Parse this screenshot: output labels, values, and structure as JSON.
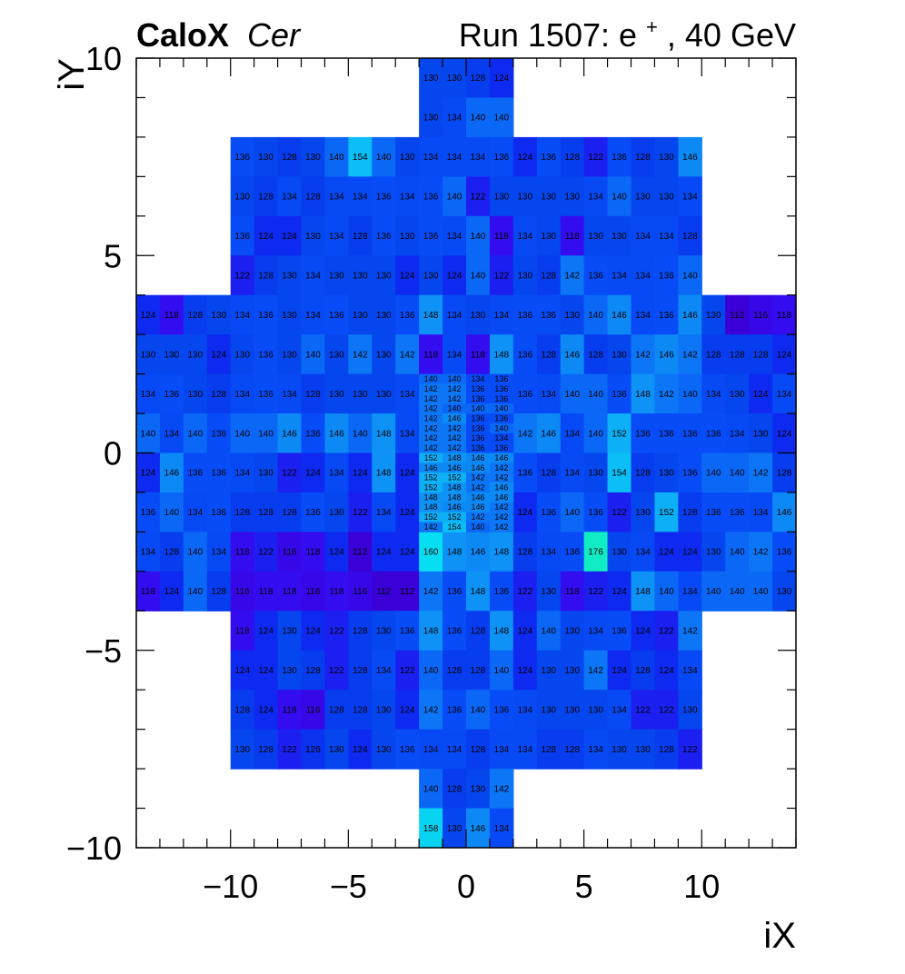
{
  "header": {
    "brand": "CaloX",
    "subtitle": "Cer",
    "run_prefix": "Run 1507: e",
    "run_superscript": "+",
    "run_suffix": ", 40 GeV"
  },
  "chart_data": {
    "type": "heatmap",
    "xlabel": "iX",
    "ylabel": "iY",
    "xlim": [
      -14,
      14
    ],
    "ylim": [
      -10,
      10
    ],
    "x_ticks": [
      -10,
      -5,
      0,
      5,
      10
    ],
    "y_ticks": [
      -10,
      -5,
      0,
      5,
      10
    ],
    "x_tick_labels": [
      "−10",
      "−5",
      "0",
      "5",
      "10"
    ],
    "y_tick_labels": [
      "−10",
      "−5",
      "0",
      "5",
      "10"
    ],
    "color_range": [
      112,
      176
    ],
    "grid": false,
    "legend": "none",
    "coarse_cells": {
      "columns": [
        {
          "x0": -14,
          "x1": -13
        },
        {
          "x0": -13,
          "x1": -12
        },
        {
          "x0": -12,
          "x1": -11
        },
        {
          "x0": -11,
          "x1": -10
        },
        {
          "x0": -10,
          "x1": -9
        },
        {
          "x0": -9,
          "x1": -8
        },
        {
          "x0": -8,
          "x1": -7
        },
        {
          "x0": -7,
          "x1": -6
        },
        {
          "x0": -6,
          "x1": -5
        },
        {
          "x0": -5,
          "x1": -4
        },
        {
          "x0": -4,
          "x1": -3
        },
        {
          "x0": -3,
          "x1": -2
        },
        {
          "x0": -2,
          "x1": -1
        },
        {
          "x0": -1,
          "x1": 0
        },
        {
          "x0": 0,
          "x1": 1
        },
        {
          "x0": 1,
          "x1": 2
        },
        {
          "x0": 2,
          "x1": 3
        },
        {
          "x0": 3,
          "x1": 4
        },
        {
          "x0": 4,
          "x1": 5
        },
        {
          "x0": 5,
          "x1": 6
        },
        {
          "x0": 6,
          "x1": 7
        },
        {
          "x0": 7,
          "x1": 8
        },
        {
          "x0": 8,
          "x1": 9
        },
        {
          "x0": 9,
          "x1": 10
        },
        {
          "x0": 10,
          "x1": 11
        },
        {
          "x0": 11,
          "x1": 12
        },
        {
          "x0": 12,
          "x1": 13
        },
        {
          "x0": 13,
          "x1": 14
        }
      ],
      "rows": [
        {
          "y0": 9,
          "y1": 10,
          "values": [
            null,
            null,
            null,
            null,
            null,
            null,
            null,
            null,
            null,
            null,
            null,
            null,
            130,
            130,
            128,
            124,
            null,
            null,
            null,
            null,
            null,
            null,
            null,
            null,
            null,
            null,
            null,
            null
          ]
        },
        {
          "y0": 8,
          "y1": 9,
          "values": [
            null,
            null,
            null,
            null,
            null,
            null,
            null,
            null,
            null,
            null,
            null,
            null,
            130,
            134,
            140,
            140,
            null,
            null,
            null,
            null,
            null,
            null,
            null,
            null,
            null,
            null,
            null,
            null
          ]
        },
        {
          "y0": 7,
          "y1": 8,
          "values": [
            null,
            null,
            null,
            null,
            136,
            130,
            128,
            130,
            140,
            154,
            140,
            130,
            134,
            134,
            134,
            136,
            124,
            136,
            128,
            122,
            136,
            128,
            130,
            146,
            null,
            null,
            null,
            null
          ]
        },
        {
          "y0": 6,
          "y1": 7,
          "values": [
            null,
            null,
            null,
            null,
            130,
            128,
            134,
            128,
            134,
            134,
            136,
            134,
            136,
            140,
            122,
            130,
            130,
            130,
            130,
            134,
            140,
            130,
            130,
            134,
            null,
            null,
            null,
            null
          ]
        },
        {
          "y0": 5,
          "y1": 6,
          "values": [
            null,
            null,
            null,
            null,
            136,
            124,
            124,
            130,
            134,
            128,
            136,
            130,
            136,
            134,
            140,
            118,
            134,
            130,
            118,
            130,
            130,
            134,
            134,
            128,
            null,
            null,
            null,
            null
          ]
        },
        {
          "y0": 4,
          "y1": 5,
          "values": [
            null,
            null,
            null,
            null,
            122,
            128,
            130,
            134,
            130,
            130,
            130,
            124,
            130,
            124,
            140,
            122,
            130,
            128,
            142,
            136,
            134,
            134,
            136,
            140,
            null,
            null,
            null,
            null
          ]
        },
        {
          "y0": 3,
          "y1": 4,
          "values": [
            124,
            118,
            128,
            130,
            134,
            136,
            130,
            134,
            136,
            130,
            130,
            136,
            148,
            134,
            130,
            134,
            136,
            136,
            130,
            140,
            146,
            134,
            136,
            146,
            130,
            112,
            116,
            118
          ]
        },
        {
          "y0": 2,
          "y1": 3,
          "values": [
            130,
            130,
            130,
            124,
            130,
            136,
            130,
            140,
            130,
            142,
            130,
            142,
            118,
            134,
            118,
            148,
            136,
            128,
            146,
            128,
            130,
            142,
            146,
            142,
            128,
            128,
            128,
            124
          ]
        },
        {
          "y0": 1,
          "y1": 2,
          "values": [
            134,
            136,
            130,
            128,
            134,
            136,
            134,
            128,
            130,
            130,
            130,
            134,
            null,
            null,
            null,
            null,
            136,
            134,
            140,
            140,
            136,
            148,
            142,
            140,
            134,
            130,
            124,
            134
          ]
        },
        {
          "y0": 0,
          "y1": 1,
          "values": [
            140,
            134,
            140,
            136,
            140,
            140,
            146,
            136,
            146,
            140,
            148,
            134,
            null,
            null,
            null,
            null,
            142,
            146,
            134,
            140,
            152,
            136,
            136,
            136,
            136,
            134,
            130,
            124
          ]
        },
        {
          "y0": -1,
          "y1": 0,
          "values": [
            124,
            146,
            136,
            136,
            134,
            130,
            122,
            124,
            134,
            124,
            148,
            124,
            null,
            null,
            null,
            null,
            136,
            128,
            134,
            130,
            154,
            128,
            130,
            136,
            140,
            140,
            142,
            128
          ]
        },
        {
          "y0": -2,
          "y1": -1,
          "values": [
            136,
            140,
            134,
            136,
            128,
            128,
            128,
            136,
            130,
            122,
            134,
            124,
            null,
            null,
            null,
            null,
            124,
            136,
            140,
            136,
            122,
            130,
            152,
            128,
            136,
            136,
            134,
            146
          ]
        },
        {
          "y0": -3,
          "y1": -2,
          "values": [
            134,
            128,
            140,
            134,
            118,
            122,
            116,
            118,
            124,
            112,
            124,
            124,
            160,
            148,
            146,
            148,
            128,
            134,
            136,
            176,
            130,
            134,
            124,
            124,
            130,
            140,
            142,
            136
          ]
        },
        {
          "y0": -4,
          "y1": -3,
          "values": [
            118,
            124,
            140,
            128,
            116,
            118,
            118,
            116,
            118,
            116,
            112,
            112,
            142,
            136,
            148,
            136,
            122,
            130,
            118,
            122,
            124,
            148,
            140,
            134,
            140,
            140,
            140,
            130
          ]
        },
        {
          "y0": -5,
          "y1": -4,
          "values": [
            null,
            null,
            null,
            null,
            118,
            124,
            130,
            124,
            122,
            128,
            130,
            136,
            148,
            136,
            128,
            148,
            124,
            140,
            130,
            134,
            136,
            124,
            122,
            142,
            null,
            null,
            null,
            null
          ]
        },
        {
          "y0": -6,
          "y1": -5,
          "values": [
            null,
            null,
            null,
            null,
            124,
            124,
            130,
            128,
            122,
            128,
            134,
            122,
            140,
            128,
            128,
            140,
            124,
            130,
            130,
            142,
            124,
            128,
            124,
            134,
            null,
            null,
            null,
            null
          ]
        },
        {
          "y0": -7,
          "y1": -6,
          "values": [
            null,
            null,
            null,
            null,
            128,
            124,
            118,
            116,
            128,
            128,
            130,
            124,
            142,
            136,
            140,
            136,
            134,
            130,
            130,
            130,
            134,
            122,
            122,
            130,
            null,
            null,
            null,
            null
          ]
        },
        {
          "y0": -8,
          "y1": -7,
          "values": [
            null,
            null,
            null,
            null,
            130,
            128,
            122,
            126,
            130,
            124,
            130,
            136,
            134,
            134,
            128,
            134,
            134,
            128,
            128,
            134,
            130,
            130,
            128,
            122,
            null,
            null,
            null,
            null
          ]
        },
        {
          "y0": -9,
          "y1": -8,
          "values": [
            null,
            null,
            null,
            null,
            null,
            null,
            null,
            null,
            null,
            null,
            null,
            null,
            140,
            128,
            130,
            142,
            null,
            null,
            null,
            null,
            null,
            null,
            null,
            null,
            null,
            null,
            null,
            null
          ]
        },
        {
          "y0": -10,
          "y1": -9,
          "values": [
            null,
            null,
            null,
            null,
            null,
            null,
            null,
            null,
            null,
            null,
            null,
            null,
            158,
            130,
            146,
            134,
            null,
            null,
            null,
            null,
            null,
            null,
            null,
            null,
            null,
            null,
            null,
            null
          ]
        }
      ]
    },
    "fine_cells": {
      "x_range": [
        -2,
        2
      ],
      "y_range": [
        -2,
        2
      ],
      "columns": 4,
      "rows_top_to_bottom": [
        [
          140,
          140,
          134,
          136
        ],
        [
          142,
          142,
          136,
          136
        ],
        [
          142,
          142,
          136,
          136
        ],
        [
          142,
          140,
          140,
          140
        ],
        [
          142,
          146,
          136,
          136
        ],
        [
          142,
          142,
          136,
          140
        ],
        [
          142,
          142,
          136,
          134
        ],
        [
          142,
          142,
          136,
          136
        ],
        [
          152,
          148,
          146,
          146
        ],
        [
          146,
          146,
          146,
          142
        ],
        [
          152,
          152,
          142,
          142
        ],
        [
          152,
          148,
          142,
          146
        ],
        [
          148,
          148,
          146,
          146
        ],
        [
          148,
          146,
          146,
          142
        ],
        [
          152,
          152,
          142,
          142
        ],
        [
          142,
          154,
          140,
          142
        ]
      ]
    }
  }
}
